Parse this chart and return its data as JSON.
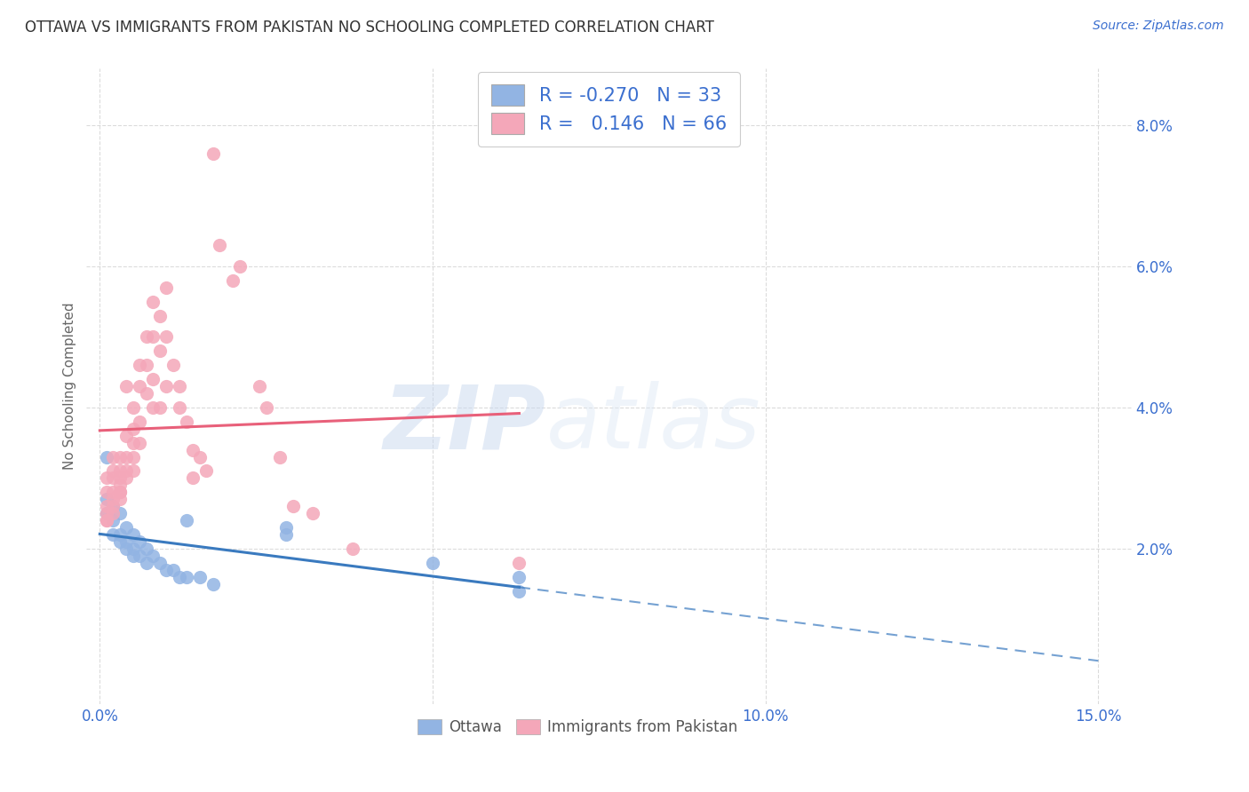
{
  "title": "OTTAWA VS IMMIGRANTS FROM PAKISTAN NO SCHOOLING COMPLETED CORRELATION CHART",
  "source": "Source: ZipAtlas.com",
  "ylabel": "No Schooling Completed",
  "xlim": [
    -0.002,
    0.155
  ],
  "ylim": [
    -0.002,
    0.088
  ],
  "xticks": [
    0.0,
    0.05,
    0.1,
    0.15
  ],
  "xtick_labels": [
    "0.0%",
    "",
    "10.0%",
    "15.0%"
  ],
  "yticks": [
    0.02,
    0.04,
    0.06,
    0.08
  ],
  "ytick_labels": [
    "2.0%",
    "4.0%",
    "6.0%",
    "8.0%"
  ],
  "ottawa_color": "#92b4e3",
  "pakistan_color": "#f4a7b9",
  "ottawa_line_color": "#3a7abf",
  "pakistan_line_color": "#e8607a",
  "ottawa_R": -0.27,
  "ottawa_N": 33,
  "pakistan_R": 0.146,
  "pakistan_N": 66,
  "watermark_zip": "ZIP",
  "watermark_atlas": "atlas",
  "legend_color": "#3b6fcf",
  "ottawa_scatter": [
    [
      0.001,
      0.033
    ],
    [
      0.001,
      0.027
    ],
    [
      0.001,
      0.025
    ],
    [
      0.002,
      0.026
    ],
    [
      0.002,
      0.024
    ],
    [
      0.002,
      0.022
    ],
    [
      0.003,
      0.025
    ],
    [
      0.003,
      0.022
    ],
    [
      0.003,
      0.021
    ],
    [
      0.004,
      0.023
    ],
    [
      0.004,
      0.021
    ],
    [
      0.004,
      0.02
    ],
    [
      0.005,
      0.022
    ],
    [
      0.005,
      0.02
    ],
    [
      0.005,
      0.019
    ],
    [
      0.006,
      0.021
    ],
    [
      0.006,
      0.019
    ],
    [
      0.007,
      0.02
    ],
    [
      0.007,
      0.018
    ],
    [
      0.008,
      0.019
    ],
    [
      0.009,
      0.018
    ],
    [
      0.01,
      0.017
    ],
    [
      0.011,
      0.017
    ],
    [
      0.012,
      0.016
    ],
    [
      0.013,
      0.024
    ],
    [
      0.013,
      0.016
    ],
    [
      0.015,
      0.016
    ],
    [
      0.017,
      0.015
    ],
    [
      0.028,
      0.023
    ],
    [
      0.028,
      0.022
    ],
    [
      0.05,
      0.018
    ],
    [
      0.063,
      0.016
    ],
    [
      0.063,
      0.014
    ]
  ],
  "pakistan_scatter": [
    [
      0.001,
      0.03
    ],
    [
      0.001,
      0.028
    ],
    [
      0.001,
      0.026
    ],
    [
      0.001,
      0.025
    ],
    [
      0.001,
      0.024
    ],
    [
      0.001,
      0.024
    ],
    [
      0.002,
      0.033
    ],
    [
      0.002,
      0.031
    ],
    [
      0.002,
      0.03
    ],
    [
      0.002,
      0.028
    ],
    [
      0.002,
      0.027
    ],
    [
      0.002,
      0.026
    ],
    [
      0.002,
      0.025
    ],
    [
      0.003,
      0.033
    ],
    [
      0.003,
      0.031
    ],
    [
      0.003,
      0.03
    ],
    [
      0.003,
      0.029
    ],
    [
      0.003,
      0.028
    ],
    [
      0.003,
      0.027
    ],
    [
      0.003,
      0.028
    ],
    [
      0.004,
      0.043
    ],
    [
      0.004,
      0.036
    ],
    [
      0.004,
      0.033
    ],
    [
      0.004,
      0.031
    ],
    [
      0.004,
      0.03
    ],
    [
      0.005,
      0.04
    ],
    [
      0.005,
      0.037
    ],
    [
      0.005,
      0.035
    ],
    [
      0.005,
      0.033
    ],
    [
      0.005,
      0.031
    ],
    [
      0.006,
      0.046
    ],
    [
      0.006,
      0.043
    ],
    [
      0.006,
      0.038
    ],
    [
      0.006,
      0.035
    ],
    [
      0.007,
      0.05
    ],
    [
      0.007,
      0.046
    ],
    [
      0.007,
      0.042
    ],
    [
      0.008,
      0.055
    ],
    [
      0.008,
      0.05
    ],
    [
      0.008,
      0.044
    ],
    [
      0.008,
      0.04
    ],
    [
      0.009,
      0.053
    ],
    [
      0.009,
      0.048
    ],
    [
      0.009,
      0.04
    ],
    [
      0.01,
      0.057
    ],
    [
      0.01,
      0.05
    ],
    [
      0.01,
      0.043
    ],
    [
      0.011,
      0.046
    ],
    [
      0.012,
      0.043
    ],
    [
      0.012,
      0.04
    ],
    [
      0.013,
      0.038
    ],
    [
      0.014,
      0.034
    ],
    [
      0.014,
      0.03
    ],
    [
      0.015,
      0.033
    ],
    [
      0.016,
      0.031
    ],
    [
      0.017,
      0.076
    ],
    [
      0.018,
      0.063
    ],
    [
      0.02,
      0.058
    ],
    [
      0.021,
      0.06
    ],
    [
      0.024,
      0.043
    ],
    [
      0.025,
      0.04
    ],
    [
      0.027,
      0.033
    ],
    [
      0.029,
      0.026
    ],
    [
      0.032,
      0.025
    ],
    [
      0.038,
      0.02
    ],
    [
      0.063,
      0.018
    ]
  ],
  "background_color": "#ffffff",
  "grid_color": "#cccccc",
  "title_fontsize": 12,
  "axis_label_fontsize": 11,
  "tick_fontsize": 12,
  "legend_fontsize": 15
}
